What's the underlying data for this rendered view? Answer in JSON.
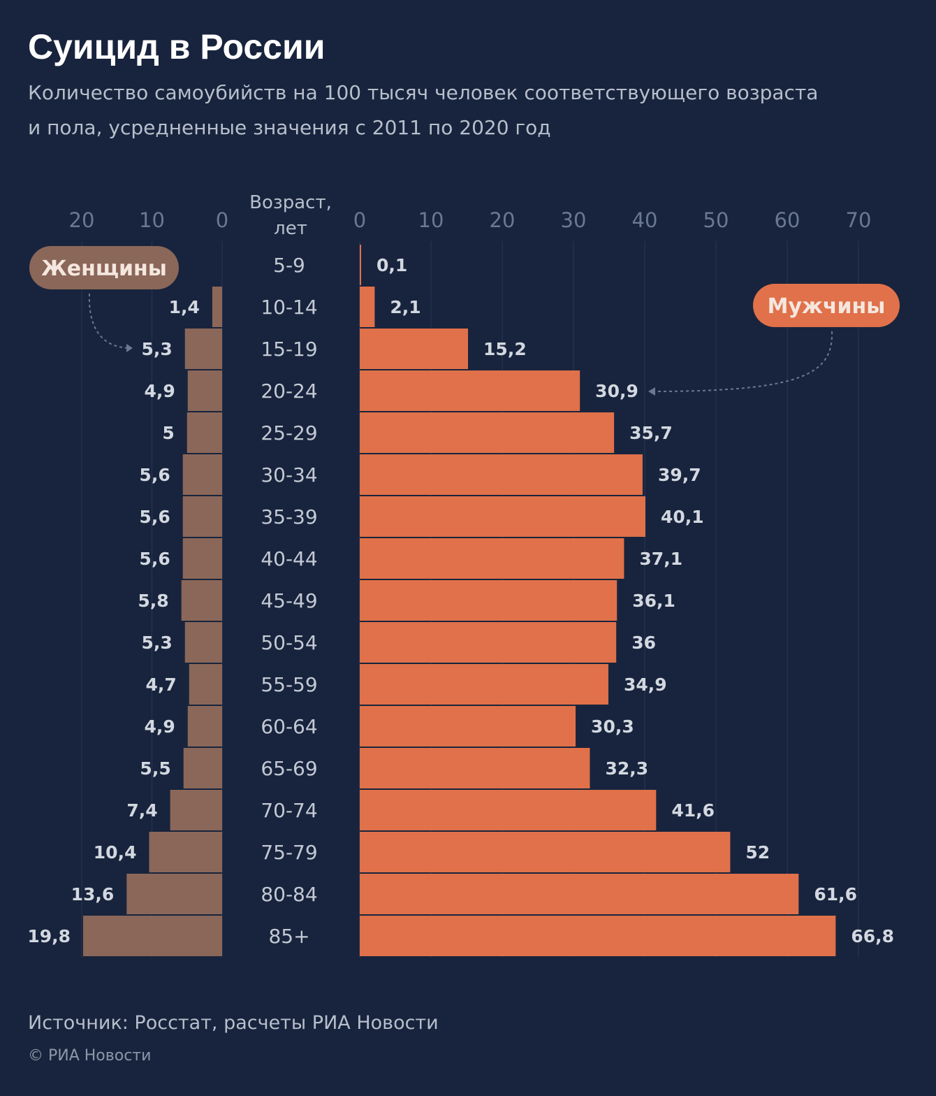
{
  "chart_data": {
    "type": "bar",
    "title": "Суицид в России",
    "subtitle_line1": "Количество самоубийств на 100 тысяч человек соответствующего возраста",
    "subtitle_line2": "и пола, усредненные значения с 2011 по 2020 год",
    "age_axis_title_line1": "Возраст,",
    "age_axis_title_line2": "лет",
    "categories": [
      "5-9",
      "10-14",
      "15-19",
      "20-24",
      "25-29",
      "30-34",
      "35-39",
      "40-44",
      "45-49",
      "50-54",
      "55-59",
      "60-64",
      "65-69",
      "70-74",
      "75-79",
      "80-84",
      "85+"
    ],
    "series": [
      {
        "name": "Женщины",
        "color": "#8b6759",
        "values": [
          0,
          1.4,
          5.3,
          4.9,
          5,
          5.6,
          5.6,
          5.6,
          5.8,
          5.3,
          4.7,
          4.9,
          5.5,
          7.4,
          10.4,
          13.6,
          19.8
        ],
        "labels": [
          "",
          "1,4",
          "5,3",
          "4,9",
          "5",
          "5,6",
          "5,6",
          "5,6",
          "5,8",
          "5,3",
          "4,7",
          "4,9",
          "5,5",
          "7,4",
          "10,4",
          "13,6",
          "19,8"
        ],
        "axis_ticks": [
          "20",
          "10",
          "0"
        ],
        "axis_tick_values": [
          20,
          10,
          0
        ],
        "xlim": [
          0,
          20
        ]
      },
      {
        "name": "Мужчины",
        "color": "#e0714a",
        "values": [
          0.1,
          2.1,
          15.2,
          30.9,
          35.7,
          39.7,
          40.1,
          37.1,
          36.1,
          36,
          34.9,
          30.3,
          32.3,
          41.6,
          52,
          61.6,
          66.8
        ],
        "labels": [
          "0,1",
          "2,1",
          "15,2",
          "30,9",
          "35,7",
          "39,7",
          "40,1",
          "37,1",
          "36,1",
          "36",
          "34,9",
          "30,3",
          "32,3",
          "41,6",
          "52",
          "61,6",
          "66,8"
        ],
        "axis_ticks": [
          "0",
          "10",
          "20",
          "30",
          "40",
          "50",
          "60",
          "70"
        ],
        "axis_tick_values": [
          0,
          10,
          20,
          30,
          40,
          50,
          60,
          70
        ],
        "xlim": [
          0,
          70
        ]
      }
    ],
    "grid": true
  },
  "footer": {
    "source": "Источник: Росстат, расчеты РИА Новости",
    "copyright": "© РИА Новости"
  }
}
